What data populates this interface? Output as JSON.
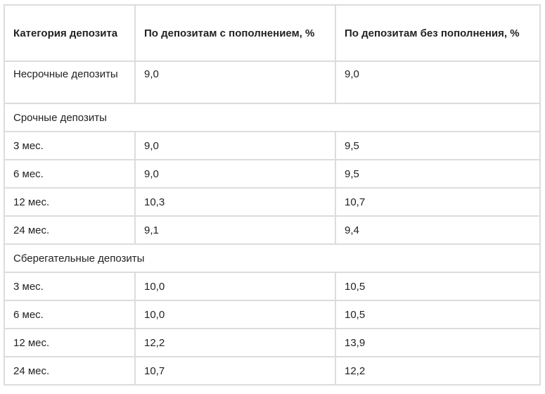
{
  "table": {
    "headers": [
      "Категория депозита",
      "По депозитам с пополнением, %",
      "По депозитам без пополнения, %"
    ],
    "rows": [
      {
        "type": "row",
        "cells": [
          "Несрочные депозиты",
          "9,0",
          "9,0"
        ]
      },
      {
        "type": "section",
        "label": "Срочные депозиты"
      },
      {
        "type": "row",
        "cells": [
          "3 мес.",
          "9,0",
          "9,5"
        ]
      },
      {
        "type": "row",
        "cells": [
          "6 мес.",
          "9,0",
          "9,5"
        ]
      },
      {
        "type": "row",
        "cells": [
          "12 мес.",
          "10,3",
          "10,7"
        ]
      },
      {
        "type": "row",
        "cells": [
          "24 мес.",
          "9,1",
          "9,4"
        ]
      },
      {
        "type": "section",
        "label": "Сберегательные депозиты"
      },
      {
        "type": "row",
        "cells": [
          "3 мес.",
          "10,0",
          "10,5"
        ]
      },
      {
        "type": "row",
        "cells": [
          "6 мес.",
          "10,0",
          "10,5"
        ]
      },
      {
        "type": "row",
        "cells": [
          "12 мес.",
          "12,2",
          "13,9"
        ]
      },
      {
        "type": "row",
        "cells": [
          "24 мес.",
          "10,7",
          "12,2"
        ]
      }
    ]
  },
  "colors": {
    "border": "#dcdcdc",
    "text": "#222222",
    "background": "#ffffff"
  }
}
